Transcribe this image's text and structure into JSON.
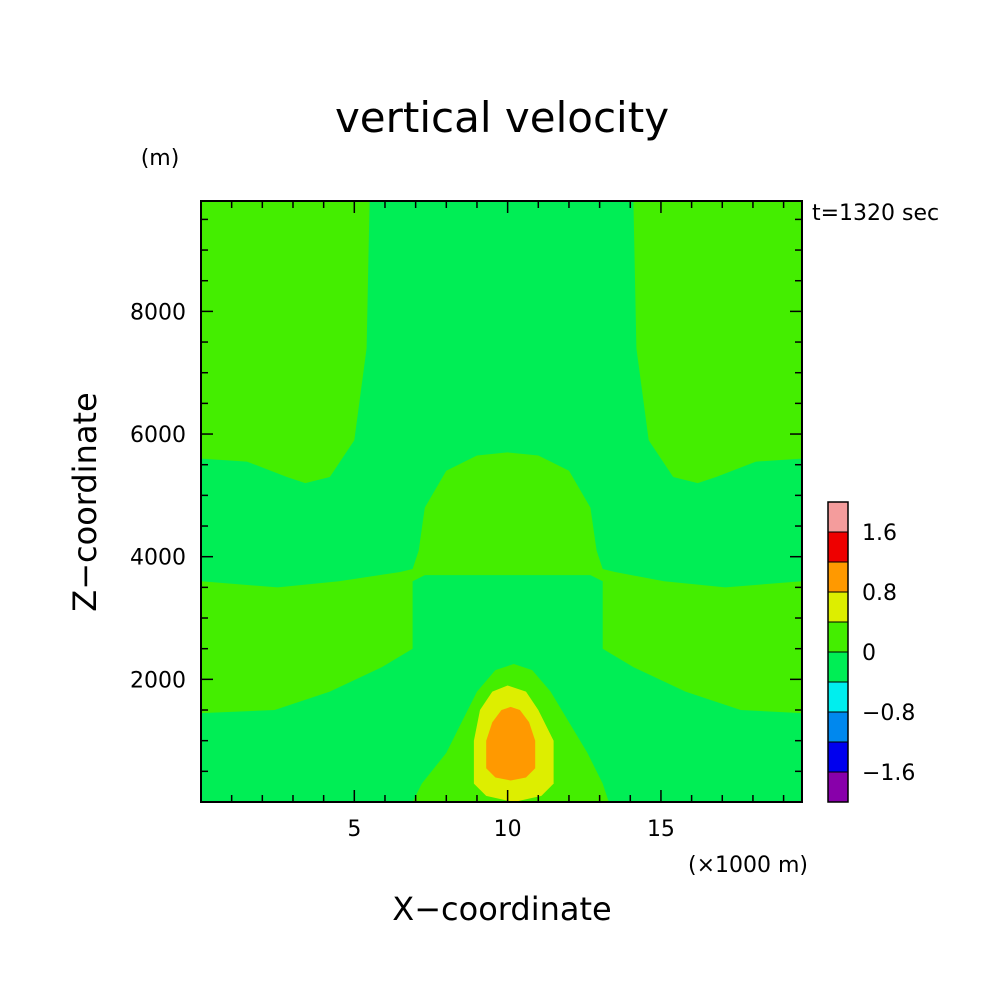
{
  "chart_data": {
    "type": "contour",
    "title": "vertical velocity",
    "time_label": "t=1320 sec",
    "xlabel": "X−coordinate",
    "xunit": "(×1000 m)",
    "ylabel": "Z−coordinate",
    "yunit": "(m)",
    "xlim": [
      0,
      19.6
    ],
    "ylim": [
      0,
      9800
    ],
    "x_ticks": [
      5,
      10,
      15
    ],
    "x_tick_labels": [
      "5",
      "10",
      "15"
    ],
    "y_ticks": [
      2000,
      4000,
      6000,
      8000
    ],
    "y_tick_labels": [
      "2000",
      "4000",
      "6000",
      "8000"
    ],
    "colorbar": {
      "levels": [
        -2.0,
        -1.6,
        -1.2,
        -0.8,
        -0.4,
        0.0,
        0.4,
        0.8,
        1.2,
        1.6,
        2.0
      ],
      "colors": [
        "#8800aa",
        "#0000ee",
        "#0088ee",
        "#00eeee",
        "#00ee55",
        "#44ee00",
        "#ddee00",
        "#ff9900",
        "#ee0000",
        "#f49c9c"
      ],
      "tick_labels": [
        "−1.6",
        "−0.8",
        "0",
        "0.8",
        "1.6"
      ],
      "tick_values": [
        -1.6,
        -0.8,
        0,
        0.8,
        1.6
      ]
    },
    "regions": [
      {
        "level": "0.0 to 0.4",
        "color": "#44ee00",
        "points": [
          [
            0,
            5600
          ],
          [
            1.5,
            5550
          ],
          [
            2.8,
            5300
          ],
          [
            3.4,
            5200
          ],
          [
            4.2,
            5300
          ],
          [
            5.0,
            5900
          ],
          [
            5.4,
            7400
          ],
          [
            5.5,
            9800
          ],
          [
            0,
            9800
          ]
        ]
      },
      {
        "level": "0.0 to 0.4",
        "color": "#44ee00",
        "points": [
          [
            19.6,
            5600
          ],
          [
            18.1,
            5550
          ],
          [
            16.8,
            5300
          ],
          [
            16.2,
            5200
          ],
          [
            15.4,
            5300
          ],
          [
            14.6,
            5900
          ],
          [
            14.2,
            7400
          ],
          [
            14.1,
            9800
          ],
          [
            19.6,
            9800
          ]
        ]
      },
      {
        "level": "0.0 to 0.4",
        "color": "#44ee00",
        "points": [
          [
            0,
            3600
          ],
          [
            2.5,
            3500
          ],
          [
            4.5,
            3600
          ],
          [
            6.5,
            3750
          ],
          [
            6.9,
            3800
          ],
          [
            7.1,
            4100
          ],
          [
            7.3,
            4800
          ],
          [
            8.0,
            5400
          ],
          [
            9.0,
            5650
          ],
          [
            10.0,
            5700
          ],
          [
            11.0,
            5650
          ],
          [
            12.0,
            5400
          ],
          [
            12.7,
            4800
          ],
          [
            12.9,
            4100
          ],
          [
            13.1,
            3800
          ],
          [
            13.5,
            3750
          ],
          [
            15.1,
            3600
          ],
          [
            17.1,
            3500
          ],
          [
            19.6,
            3600
          ],
          [
            19.6,
            1450
          ],
          [
            17.6,
            1500
          ],
          [
            15.8,
            1800
          ],
          [
            14.1,
            2200
          ],
          [
            13.1,
            2500
          ],
          [
            13.1,
            3600
          ],
          [
            12.7,
            3700
          ],
          [
            10.0,
            3700
          ],
          [
            7.3,
            3700
          ],
          [
            6.9,
            3600
          ],
          [
            6.9,
            2500
          ],
          [
            5.9,
            2200
          ],
          [
            4.2,
            1800
          ],
          [
            2.4,
            1500
          ],
          [
            0,
            1450
          ]
        ]
      },
      {
        "level": "0.0 to 0.4",
        "color": "#44ee00",
        "points": [
          [
            6.9,
            0
          ],
          [
            7.2,
            300
          ],
          [
            8.0,
            800
          ],
          [
            8.5,
            1300
          ],
          [
            9.0,
            1800
          ],
          [
            9.6,
            2150
          ],
          [
            10.2,
            2250
          ],
          [
            10.8,
            2150
          ],
          [
            11.4,
            1800
          ],
          [
            12.0,
            1300
          ],
          [
            12.6,
            800
          ],
          [
            13.1,
            300
          ],
          [
            13.3,
            0
          ]
        ]
      },
      {
        "level": "0.4 to 0.8",
        "color": "#ddee00",
        "points": [
          [
            8.9,
            300
          ],
          [
            8.9,
            1000
          ],
          [
            9.1,
            1500
          ],
          [
            9.5,
            1800
          ],
          [
            10.0,
            1900
          ],
          [
            10.6,
            1800
          ],
          [
            11.0,
            1500
          ],
          [
            11.5,
            1000
          ],
          [
            11.5,
            300
          ],
          [
            11.1,
            100
          ],
          [
            10.2,
            0
          ],
          [
            9.3,
            100
          ]
        ]
      },
      {
        "level": "0.8 to 1.2",
        "color": "#ff9900",
        "points": [
          [
            9.3,
            550
          ],
          [
            9.3,
            1000
          ],
          [
            9.5,
            1300
          ],
          [
            9.8,
            1500
          ],
          [
            10.1,
            1550
          ],
          [
            10.4,
            1500
          ],
          [
            10.7,
            1300
          ],
          [
            10.9,
            1000
          ],
          [
            10.9,
            550
          ],
          [
            10.6,
            400
          ],
          [
            10.1,
            350
          ],
          [
            9.6,
            400
          ]
        ]
      }
    ]
  }
}
